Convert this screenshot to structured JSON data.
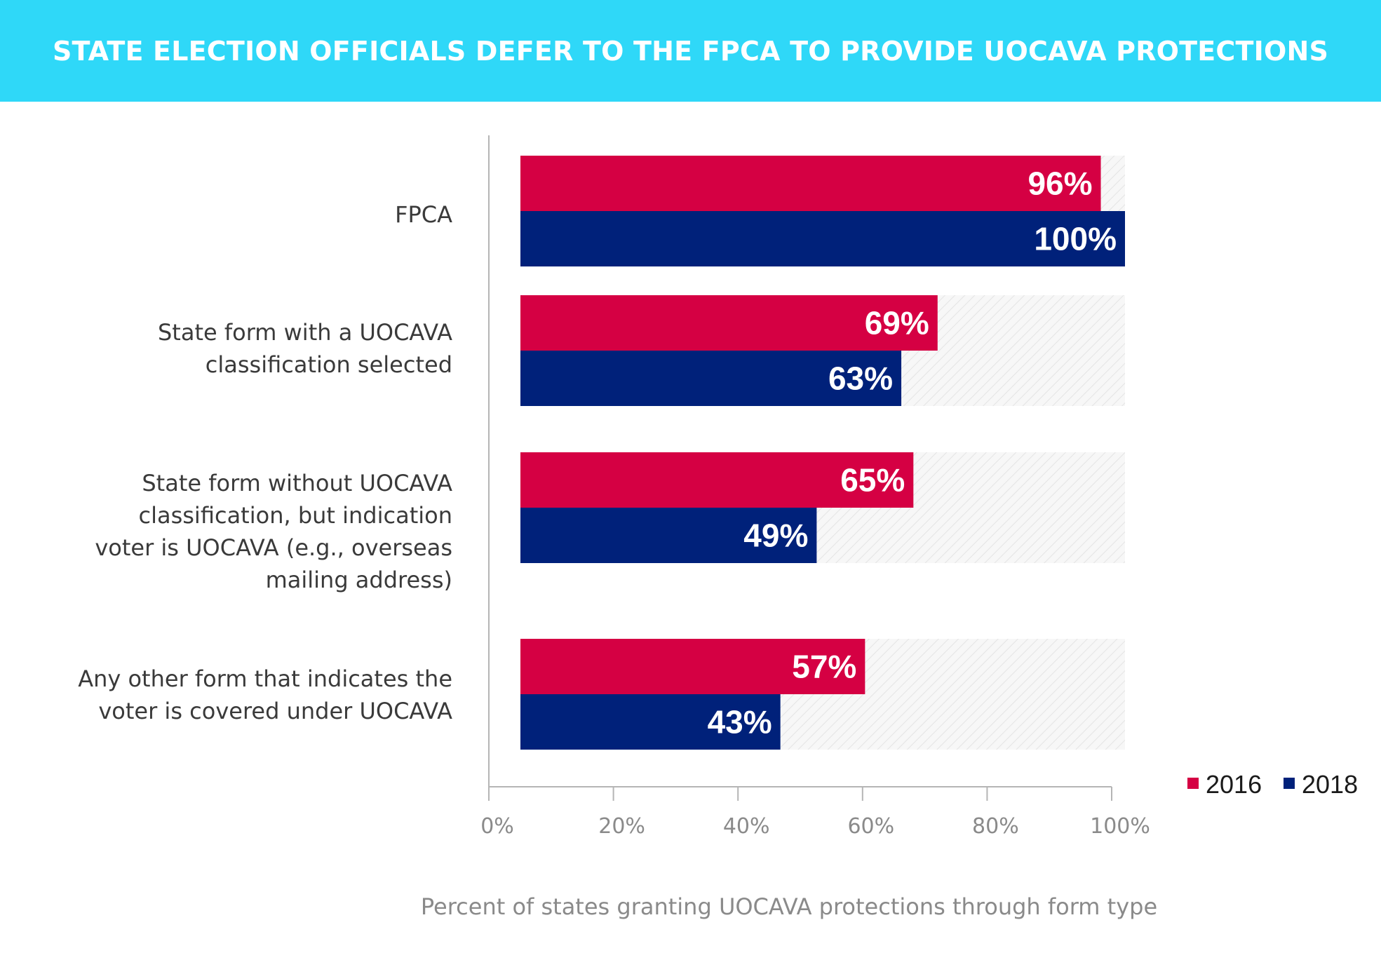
{
  "title": "STATE ELECTION OFFICIALS DEFER TO THE FPCA TO PROVIDE UOCAVA PROTECTIONS",
  "colors": {
    "banner": "#2fd8f8",
    "series_2016": "#d50043",
    "series_2018": "#00217a",
    "track": "#f2f2f2",
    "axis": "#b5b5b5"
  },
  "chart_data": {
    "type": "bar",
    "orientation": "horizontal",
    "categories": [
      "FPCA",
      "State form with a UOCAVA classification selected",
      "State form without UOCAVA classification, but indication voter is UOCAVA (e.g., overseas mailing address)",
      "Any other form that indicates the voter is covered under UOCAVA"
    ],
    "category_lines": [
      [
        "FPCA"
      ],
      [
        "State form with a UOCAVA",
        "classification selected"
      ],
      [
        "State form without UOCAVA",
        "classification, but indication",
        "voter is UOCAVA (e.g., overseas",
        "mailing address)"
      ],
      [
        "Any other form that indicates the",
        "voter is covered under UOCAVA"
      ]
    ],
    "series": [
      {
        "name": "2016",
        "values": [
          96,
          69,
          65,
          57
        ],
        "labels": [
          "96%",
          "69%",
          "65%",
          "57%"
        ],
        "color": "#d50043"
      },
      {
        "name": "2018",
        "values": [
          100,
          63,
          49,
          43
        ],
        "labels": [
          "100%",
          "63%",
          "49%",
          "43%"
        ],
        "color": "#00217a"
      }
    ],
    "xlim": [
      0,
      100
    ],
    "x_ticks": [
      "0%",
      "20%",
      "40%",
      "60%",
      "80%",
      "100%"
    ],
    "xlabel": "Percent of states granting UOCAVA protections through form type",
    "legend": {
      "position": "bottom-right",
      "entries": [
        "2016",
        "2018"
      ]
    },
    "grid": false
  }
}
